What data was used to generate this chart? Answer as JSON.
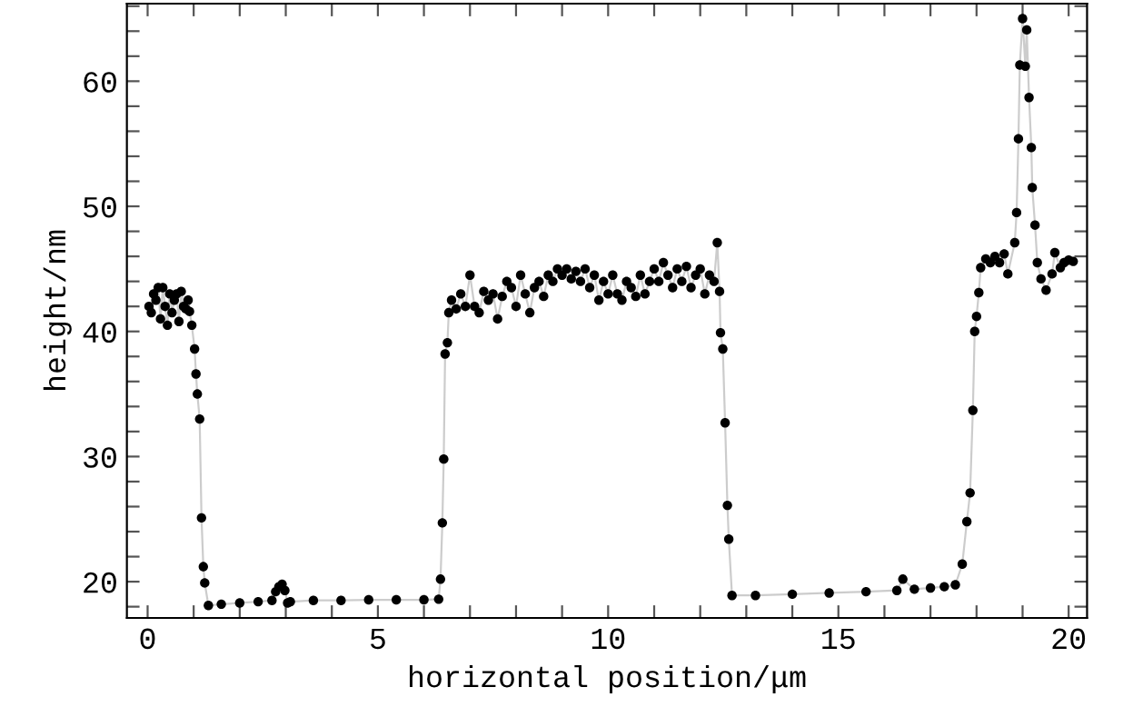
{
  "chart_data": {
    "type": "line",
    "xlabel": "horizontal position/μm",
    "ylabel": "height/nm",
    "x": [
      0.03,
      0.08,
      0.13,
      0.18,
      0.23,
      0.28,
      0.33,
      0.38,
      0.43,
      0.48,
      0.53,
      0.58,
      0.63,
      0.68,
      0.73,
      0.78,
      0.83,
      0.88,
      0.91,
      0.96,
      1.02,
      1.05,
      1.08,
      1.13,
      1.17,
      1.21,
      1.24,
      1.32,
      1.6,
      2.0,
      2.4,
      2.7,
      2.78,
      2.85,
      2.92,
      2.98,
      3.04,
      3.1,
      3.6,
      4.2,
      4.8,
      5.4,
      6.0,
      6.32,
      6.36,
      6.4,
      6.43,
      6.46,
      6.51,
      6.54,
      6.6,
      6.7,
      6.8,
      6.9,
      7.0,
      7.1,
      7.2,
      7.3,
      7.4,
      7.5,
      7.6,
      7.7,
      7.8,
      7.9,
      8.0,
      8.1,
      8.2,
      8.3,
      8.4,
      8.5,
      8.6,
      8.7,
      8.8,
      8.9,
      9.0,
      9.1,
      9.2,
      9.3,
      9.4,
      9.5,
      9.6,
      9.7,
      9.8,
      9.9,
      10.0,
      10.1,
      10.2,
      10.3,
      10.4,
      10.5,
      10.6,
      10.7,
      10.8,
      10.9,
      11.0,
      11.1,
      11.2,
      11.3,
      11.4,
      11.5,
      11.6,
      11.7,
      11.8,
      11.9,
      12.0,
      12.1,
      12.2,
      12.3,
      12.37,
      12.42,
      12.44,
      12.49,
      12.54,
      12.59,
      12.62,
      12.69,
      13.2,
      14.0,
      14.8,
      15.6,
      16.27,
      16.4,
      16.65,
      17.0,
      17.3,
      17.54,
      17.69,
      17.79,
      17.86,
      17.92,
      17.96,
      18.0,
      18.05,
      18.09,
      18.2,
      18.3,
      18.4,
      18.5,
      18.6,
      18.68,
      18.83,
      18.87,
      18.91,
      18.94,
      19.0,
      19.06,
      19.09,
      19.14,
      19.19,
      19.21,
      19.27,
      19.32,
      19.4,
      19.51,
      19.64,
      19.7,
      19.82,
      19.9,
      20.0,
      20.1
    ],
    "values": [
      42.0,
      41.5,
      43.0,
      42.5,
      43.5,
      41.0,
      43.5,
      42.0,
      40.5,
      43.0,
      41.5,
      42.5,
      43.0,
      40.8,
      43.2,
      42.0,
      41.8,
      42.5,
      41.6,
      40.5,
      38.6,
      36.6,
      35.0,
      33.0,
      25.1,
      21.2,
      19.9,
      18.1,
      18.2,
      18.3,
      18.4,
      18.5,
      19.2,
      19.6,
      19.8,
      19.3,
      18.3,
      18.4,
      18.5,
      18.5,
      18.55,
      18.55,
      18.55,
      18.6,
      20.2,
      24.7,
      29.8,
      38.2,
      39.1,
      41.5,
      42.5,
      41.8,
      43.0,
      42.0,
      44.5,
      42.0,
      41.5,
      43.2,
      42.5,
      43.0,
      41.0,
      42.8,
      44.0,
      43.5,
      42.0,
      44.5,
      43.0,
      41.5,
      43.5,
      44.0,
      42.8,
      44.5,
      44.0,
      45.0,
      44.5,
      45.0,
      44.2,
      44.8,
      44.0,
      45.0,
      43.5,
      44.5,
      42.5,
      44.0,
      43.0,
      44.5,
      43.0,
      42.5,
      44.0,
      43.5,
      42.8,
      44.5,
      43.0,
      44.0,
      45.0,
      44.0,
      45.5,
      44.5,
      43.5,
      45.0,
      44.0,
      45.2,
      43.5,
      44.5,
      45.0,
      43.0,
      44.5,
      44.0,
      47.1,
      43.2,
      39.9,
      38.6,
      32.7,
      26.1,
      23.4,
      18.9,
      18.9,
      19.0,
      19.1,
      19.2,
      19.3,
      20.2,
      19.4,
      19.5,
      19.6,
      19.75,
      21.4,
      24.8,
      27.1,
      33.7,
      40.0,
      41.2,
      43.1,
      45.1,
      45.8,
      45.5,
      46.0,
      45.5,
      46.2,
      44.6,
      47.1,
      49.5,
      55.4,
      61.3,
      65.0,
      61.2,
      64.1,
      58.7,
      54.7,
      51.5,
      48.5,
      45.5,
      44.2,
      43.3,
      44.6,
      46.3,
      45.1,
      45.5,
      45.7,
      45.6
    ],
    "color": "#000000",
    "marker": "circle",
    "line_style": "solid",
    "xlim": [
      -0.45,
      20.4
    ],
    "ylim": [
      17.1,
      66.2
    ],
    "xticks": [
      0,
      {
        "value": 1,
        "label": null
      },
      {
        "value": 2,
        "label": null
      },
      {
        "value": 3,
        "label": null
      },
      {
        "value": 4,
        "label": null
      },
      5,
      {
        "value": 6,
        "label": null
      },
      {
        "value": 7,
        "label": null
      },
      {
        "value": 8,
        "label": null
      },
      {
        "value": 9,
        "label": null
      },
      10,
      {
        "value": 11,
        "label": null
      },
      {
        "value": 12,
        "label": null
      },
      {
        "value": 13,
        "label": null
      },
      {
        "value": 14,
        "label": null
      },
      15,
      {
        "value": 16,
        "label": null
      },
      {
        "value": 17,
        "label": null
      },
      {
        "value": 18,
        "label": null
      },
      {
        "value": 19,
        "label": null
      },
      20
    ],
    "yticks": [
      {
        "value": 18,
        "label": null
      },
      20,
      {
        "value": 22,
        "label": null
      },
      {
        "value": 24,
        "label": null
      },
      {
        "value": 26,
        "label": null
      },
      {
        "value": 28,
        "label": null
      },
      30,
      {
        "value": 32,
        "label": null
      },
      {
        "value": 34,
        "label": null
      },
      {
        "value": 36,
        "label": null
      },
      {
        "value": 38,
        "label": null
      },
      40,
      {
        "value": 42,
        "label": null
      },
      {
        "value": 44,
        "label": null
      },
      {
        "value": 46,
        "label": null
      },
      {
        "value": 48,
        "label": null
      },
      50,
      {
        "value": 52,
        "label": null
      },
      {
        "value": 54,
        "label": null
      },
      {
        "value": 56,
        "label": null
      },
      {
        "value": 58,
        "label": null
      },
      60,
      {
        "value": 62,
        "label": null
      },
      {
        "value": 64,
        "label": null
      },
      {
        "value": 66,
        "label": null
      }
    ],
    "grid": false,
    "legend": false
  }
}
